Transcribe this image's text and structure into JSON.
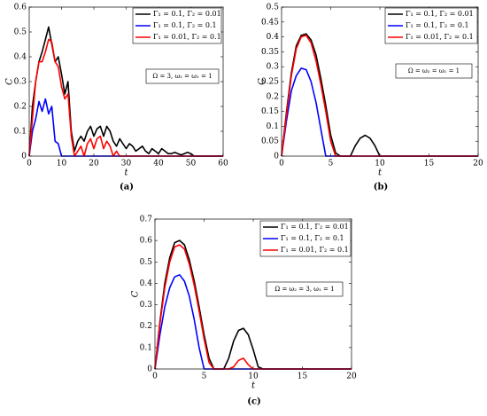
{
  "chart_data": [
    {
      "type": "line",
      "label": "(a)",
      "xlabel": "t",
      "ylabel": "C",
      "annotation": "Ω = 3, ω₂ = ω₁ = 1",
      "xlim": [
        0,
        60
      ],
      "xticks": [
        0,
        10,
        20,
        30,
        40,
        50,
        60
      ],
      "ylim": [
        0,
        0.6
      ],
      "yticks": [
        0,
        0.1,
        0.2,
        0.3,
        0.4,
        0.5,
        0.6
      ],
      "x": [
        0,
        1,
        2,
        3,
        4,
        5,
        6,
        7,
        8,
        9,
        10,
        11,
        12,
        13,
        14,
        15,
        16,
        17,
        18,
        19,
        20,
        21,
        22,
        23,
        24,
        25,
        26,
        27,
        28,
        29,
        30,
        31,
        32,
        33,
        34,
        35,
        36,
        37,
        38,
        39,
        40,
        41,
        42,
        43,
        44,
        45,
        46,
        47,
        48,
        49,
        50,
        51,
        52,
        53,
        54,
        55,
        56,
        57,
        58,
        59,
        60
      ],
      "series": [
        {
          "name": "Γ₁ = 0.1, Γ₂ = 0.01",
          "color": "#000000",
          "values": [
            0,
            0.2,
            0.3,
            0.38,
            0.42,
            0.47,
            0.52,
            0.45,
            0.38,
            0.4,
            0.33,
            0.25,
            0.3,
            0.1,
            0.02,
            0.06,
            0.08,
            0.06,
            0.1,
            0.12,
            0.08,
            0.11,
            0.12,
            0.08,
            0.12,
            0.1,
            0.06,
            0.04,
            0.07,
            0.05,
            0.03,
            0.05,
            0.04,
            0.02,
            0.03,
            0.04,
            0.02,
            0.01,
            0.03,
            0.02,
            0.01,
            0.03,
            0.02,
            0.01,
            0.01,
            0.015,
            0.01,
            0.005,
            0.01,
            0.015,
            0.01,
            0,
            0,
            0,
            0,
            0,
            0,
            0,
            0,
            0,
            0
          ]
        },
        {
          "name": "Γ₁ = 0.1,  Γ₂ = 0.1",
          "color": "#0000ff",
          "values": [
            0,
            0.1,
            0.15,
            0.22,
            0.18,
            0.23,
            0.17,
            0.2,
            0.06,
            0.05,
            0,
            0,
            0,
            0,
            0,
            0,
            0,
            0,
            0,
            0,
            0,
            0,
            0,
            0,
            0,
            0,
            0,
            0,
            0,
            0,
            0,
            0,
            0,
            0,
            0,
            0,
            0,
            0,
            0,
            0,
            0,
            0,
            0,
            0,
            0,
            0,
            0,
            0,
            0,
            0,
            0,
            0,
            0,
            0,
            0,
            0,
            0,
            0,
            0,
            0,
            0
          ]
        },
        {
          "name": "Γ₁ = 0.01, Γ₂ = 0.1",
          "color": "#ff0000",
          "values": [
            0,
            0.15,
            0.3,
            0.38,
            0.38,
            0.42,
            0.47,
            0.46,
            0.38,
            0.36,
            0.28,
            0.23,
            0.25,
            0.08,
            0,
            0.02,
            0.04,
            0,
            0.05,
            0.07,
            0.03,
            0.07,
            0.08,
            0.03,
            0.06,
            0.04,
            0,
            0.02,
            0,
            0,
            0,
            0,
            0,
            0,
            0,
            0,
            0,
            0,
            0,
            0,
            0,
            0,
            0,
            0,
            0,
            0,
            0,
            0,
            0,
            0,
            0,
            0,
            0,
            0,
            0,
            0,
            0,
            0,
            0,
            0,
            0
          ]
        }
      ]
    },
    {
      "type": "line",
      "label": "(b)",
      "xlabel": "t",
      "ylabel": "C",
      "annotation": "Ω = ω₂ = ω₁ = 1",
      "xlim": [
        0,
        20
      ],
      "xticks": [
        0,
        5,
        10,
        15,
        20
      ],
      "ylim": [
        0,
        0.5
      ],
      "yticks": [
        0,
        0.05,
        0.1,
        0.15,
        0.2,
        0.25,
        0.3,
        0.35,
        0.4,
        0.45,
        0.5
      ],
      "x": [
        0,
        0.5,
        1,
        1.5,
        2,
        2.5,
        3,
        3.5,
        4,
        4.5,
        5,
        5.5,
        6,
        6.5,
        7,
        7.5,
        8,
        8.5,
        9,
        9.5,
        10,
        10.5,
        11,
        11.5,
        12,
        12.5,
        13,
        13.5,
        14,
        14.5,
        15,
        15.5,
        16,
        16.5,
        17,
        17.5,
        18,
        18.5,
        19,
        19.5,
        20
      ],
      "series": [
        {
          "name": "Γ₁ = 0.1,  Γ₂ = 0.01",
          "color": "#000000",
          "values": [
            0,
            0.15,
            0.28,
            0.37,
            0.405,
            0.41,
            0.39,
            0.34,
            0.26,
            0.17,
            0.07,
            0.01,
            0,
            0,
            0,
            0.035,
            0.06,
            0.07,
            0.06,
            0.035,
            0,
            0,
            0,
            0,
            0,
            0,
            0,
            0,
            0,
            0,
            0,
            0,
            0,
            0,
            0,
            0,
            0,
            0,
            0,
            0,
            0
          ]
        },
        {
          "name": "Γ₁ = 0.1,  Γ₂ = 0.1",
          "color": "#0000ff",
          "values": [
            0,
            0.12,
            0.22,
            0.27,
            0.295,
            0.29,
            0.25,
            0.18,
            0.09,
            0,
            0,
            0,
            0,
            0,
            0,
            0,
            0,
            0,
            0,
            0,
            0,
            0,
            0,
            0,
            0,
            0,
            0,
            0,
            0,
            0,
            0,
            0,
            0,
            0,
            0,
            0,
            0,
            0,
            0,
            0,
            0
          ]
        },
        {
          "name": "Γ₁ = 0.01, Γ₂ = 0.1",
          "color": "#ff0000",
          "values": [
            0,
            0.14,
            0.27,
            0.36,
            0.4,
            0.405,
            0.38,
            0.32,
            0.24,
            0.15,
            0.05,
            0,
            0,
            0,
            0,
            0,
            0,
            0,
            0,
            0,
            0,
            0,
            0,
            0,
            0,
            0,
            0,
            0,
            0,
            0,
            0,
            0,
            0,
            0,
            0,
            0,
            0,
            0,
            0,
            0,
            0
          ]
        }
      ]
    },
    {
      "type": "line",
      "label": "(c)",
      "xlabel": "t",
      "ylabel": "C",
      "annotation": "Ω = ω₂ = 3,  ω₁ = 1",
      "xlim": [
        0,
        20
      ],
      "xticks": [
        0,
        5,
        10,
        15,
        20
      ],
      "ylim": [
        0,
        0.7
      ],
      "yticks": [
        0,
        0.1,
        0.2,
        0.3,
        0.4,
        0.5,
        0.6,
        0.7
      ],
      "x": [
        0,
        0.5,
        1,
        1.5,
        2,
        2.5,
        3,
        3.5,
        4,
        4.5,
        5,
        5.5,
        6,
        6.5,
        7,
        7.5,
        8,
        8.5,
        9,
        9.5,
        10,
        10.5,
        11,
        11.5,
        12,
        12.5,
        13,
        13.5,
        14,
        14.5,
        15,
        15.5,
        16,
        16.5,
        17,
        17.5,
        18,
        18.5,
        19,
        19.5,
        20
      ],
      "series": [
        {
          "name": "Γ₁ = 0.1, Γ₂ = 0.01",
          "color": "#000000",
          "values": [
            0,
            0.22,
            0.4,
            0.52,
            0.59,
            0.6,
            0.58,
            0.51,
            0.41,
            0.29,
            0.16,
            0.05,
            0,
            0,
            0,
            0.05,
            0.13,
            0.18,
            0.19,
            0.16,
            0.09,
            0.01,
            0,
            0,
            0,
            0,
            0,
            0,
            0,
            0,
            0,
            0,
            0,
            0,
            0,
            0,
            0,
            0,
            0,
            0,
            0
          ]
        },
        {
          "name": "Γ₁ = 0.1,  Γ₂ = 0.1",
          "color": "#0000ff",
          "values": [
            0,
            0.16,
            0.29,
            0.38,
            0.43,
            0.44,
            0.41,
            0.34,
            0.23,
            0.1,
            0,
            0,
            0,
            0,
            0,
            0,
            0,
            0,
            0,
            0,
            0,
            0,
            0,
            0,
            0,
            0,
            0,
            0,
            0,
            0,
            0,
            0,
            0,
            0,
            0,
            0,
            0,
            0,
            0,
            0,
            0
          ]
        },
        {
          "name": "Γ₁ = 0.01, Γ₂ = 0.1",
          "color": "#ff0000",
          "values": [
            0,
            0.21,
            0.38,
            0.5,
            0.57,
            0.58,
            0.56,
            0.49,
            0.39,
            0.27,
            0.14,
            0.03,
            0,
            0,
            0,
            0,
            0.01,
            0.04,
            0.05,
            0.02,
            0,
            0,
            0,
            0,
            0,
            0,
            0,
            0,
            0,
            0,
            0,
            0,
            0,
            0,
            0,
            0,
            0,
            0,
            0,
            0,
            0
          ]
        }
      ]
    }
  ]
}
